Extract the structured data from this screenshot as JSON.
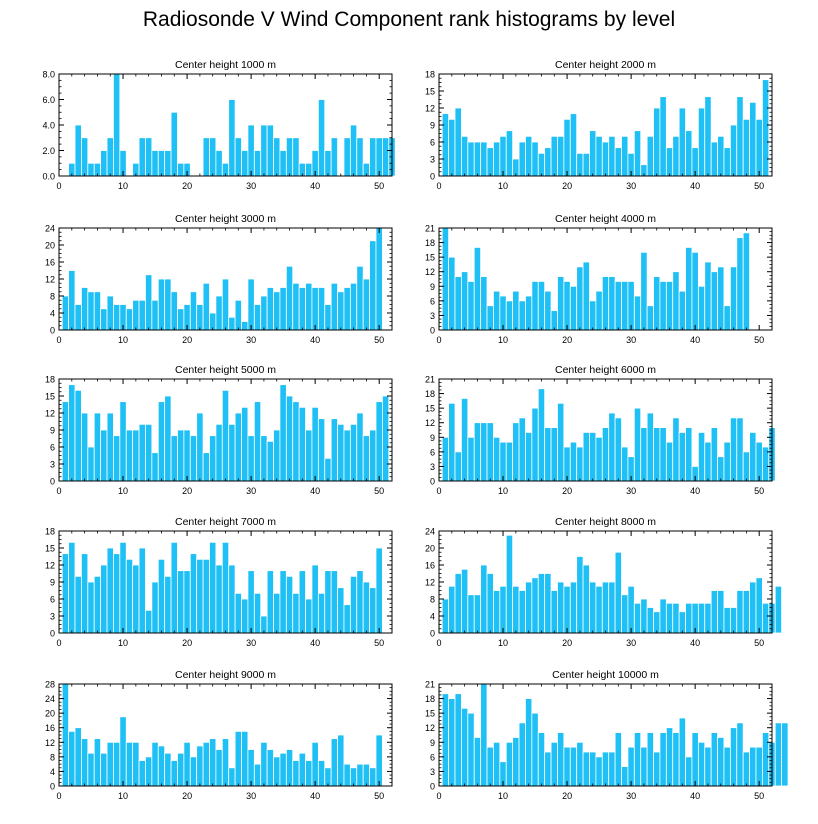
{
  "figure_title": "Radiosonde V Wind Component rank histograms by level",
  "colors": {
    "bar": "#1ec0f5",
    "bar_edge": "#ffffff",
    "axis": "#000000"
  },
  "chart_data": [
    {
      "type": "bar",
      "title": "Center height 1000 m",
      "xlabel": "",
      "ylabel": "",
      "xlim": [
        0,
        52
      ],
      "ylim": [
        0,
        8
      ],
      "yticks": [
        "0.0",
        "2.0",
        "4.0",
        "6.0",
        "8.0"
      ],
      "yticks_values": [
        0,
        2,
        4,
        6,
        8
      ],
      "xticks": [
        "0",
        "10",
        "20",
        "30",
        "40",
        "50"
      ],
      "values": [
        0,
        1,
        4,
        3,
        1,
        1,
        2,
        3,
        8,
        2,
        0,
        1,
        3,
        3,
        2,
        2,
        2,
        5,
        1,
        1,
        0,
        0,
        3,
        3,
        2,
        1,
        6,
        3,
        2,
        4,
        2,
        4,
        4,
        3,
        2,
        3,
        3,
        1,
        1,
        2,
        6,
        2,
        3,
        0,
        3,
        4,
        3,
        1,
        3,
        3,
        3,
        3
      ]
    },
    {
      "type": "bar",
      "title": "Center height 2000 m",
      "xlabel": "",
      "ylabel": "",
      "xlim": [
        0,
        52
      ],
      "ylim": [
        0,
        18
      ],
      "yticks": [
        "0",
        "3",
        "6",
        "9",
        "12",
        "15",
        "18"
      ],
      "yticks_values": [
        0,
        3,
        6,
        9,
        12,
        15,
        18
      ],
      "xticks": [
        "0",
        "10",
        "20",
        "30",
        "40",
        "50"
      ],
      "values": [
        11,
        10,
        12,
        7,
        6,
        6,
        6,
        5,
        6,
        7,
        8,
        3,
        6,
        7,
        6,
        4,
        5,
        7,
        7,
        10,
        11,
        4,
        4,
        8,
        7,
        6,
        7,
        5,
        7,
        4,
        8,
        2,
        7,
        12,
        14,
        5,
        7,
        12,
        8,
        5,
        12,
        14,
        6,
        7,
        5,
        9,
        14,
        10,
        13,
        10,
        17
      ]
    },
    {
      "type": "bar",
      "title": "Center height 3000 m",
      "xlabel": "",
      "ylabel": "",
      "xlim": [
        0,
        52
      ],
      "ylim": [
        0,
        24
      ],
      "yticks": [
        "0",
        "4",
        "8",
        "12",
        "16",
        "20",
        "24"
      ],
      "yticks_values": [
        0,
        4,
        8,
        12,
        16,
        20,
        24
      ],
      "xticks": [
        "0",
        "10",
        "20",
        "30",
        "40",
        "50"
      ],
      "values": [
        8,
        14,
        6,
        10,
        9,
        9,
        5,
        8,
        6,
        6,
        5,
        7,
        7,
        13,
        7,
        12,
        12,
        9,
        5,
        6,
        9,
        6,
        11,
        4,
        8,
        12,
        3,
        7,
        2,
        12,
        6,
        8,
        10,
        9,
        10,
        15,
        11,
        10,
        11,
        10,
        10,
        6,
        11,
        9,
        10,
        11,
        15,
        12,
        21,
        24
      ]
    },
    {
      "type": "bar",
      "title": "Center height 4000 m",
      "xlabel": "",
      "ylabel": "",
      "xlim": [
        0,
        52
      ],
      "ylim": [
        0,
        21
      ],
      "yticks": [
        "0",
        "3",
        "6",
        "9",
        "12",
        "15",
        "18",
        "21"
      ],
      "yticks_values": [
        0,
        3,
        6,
        9,
        12,
        15,
        18,
        21
      ],
      "xticks": [
        "0",
        "10",
        "20",
        "30",
        "40",
        "50"
      ],
      "values": [
        21,
        15,
        11,
        12,
        10,
        17,
        11,
        5,
        8,
        7,
        6,
        8,
        6,
        7,
        10,
        10,
        8,
        4,
        11,
        10,
        9,
        13,
        14,
        6,
        8,
        11,
        11,
        10,
        10,
        10,
        7,
        16,
        5,
        11,
        10,
        10,
        12,
        8,
        17,
        16,
        9,
        14,
        12,
        13,
        5,
        13,
        19,
        20
      ]
    },
    {
      "type": "bar",
      "title": "Center height 5000 m",
      "xlabel": "",
      "ylabel": "",
      "xlim": [
        0,
        52
      ],
      "ylim": [
        0,
        18
      ],
      "yticks": [
        "0",
        "3",
        "6",
        "9",
        "12",
        "15",
        "18"
      ],
      "yticks_values": [
        0,
        3,
        6,
        9,
        12,
        15,
        18
      ],
      "xticks": [
        "0",
        "10",
        "20",
        "30",
        "40",
        "50"
      ],
      "values": [
        14,
        17,
        16,
        12,
        6,
        12,
        9,
        12,
        8,
        14,
        9,
        9,
        10,
        10,
        5,
        14,
        15,
        8,
        9,
        9,
        8,
        12,
        5,
        8,
        10,
        16,
        10,
        12,
        13,
        8,
        14,
        8,
        7,
        9,
        17,
        15,
        14,
        13,
        9,
        13,
        11,
        4,
        11,
        10,
        9,
        10,
        12,
        8,
        9,
        14,
        15
      ]
    },
    {
      "type": "bar",
      "title": "Center height 6000 m",
      "xlabel": "",
      "ylabel": "",
      "xlim": [
        0,
        52
      ],
      "ylim": [
        0,
        21
      ],
      "yticks": [
        "0",
        "3",
        "6",
        "9",
        "12",
        "15",
        "18",
        "21"
      ],
      "yticks_values": [
        0,
        3,
        6,
        9,
        12,
        15,
        18,
        21
      ],
      "xticks": [
        "0",
        "10",
        "20",
        "30",
        "40",
        "50"
      ],
      "values": [
        9,
        16,
        6,
        17,
        9,
        12,
        12,
        12,
        9,
        8,
        8,
        12,
        13,
        10,
        15,
        19,
        11,
        11,
        16,
        7,
        8,
        7,
        10,
        10,
        9,
        11,
        14,
        13,
        7,
        5,
        15,
        11,
        14,
        11,
        11,
        8,
        13,
        10,
        11,
        3,
        10,
        8,
        11,
        5,
        8,
        13,
        13,
        6,
        10,
        8,
        7,
        11
      ]
    },
    {
      "type": "bar",
      "title": "Center height 7000 m",
      "xlabel": "",
      "ylabel": "",
      "xlim": [
        0,
        52
      ],
      "ylim": [
        0,
        18
      ],
      "yticks": [
        "0",
        "3",
        "6",
        "9",
        "12",
        "15",
        "18"
      ],
      "yticks_values": [
        0,
        3,
        6,
        9,
        12,
        15,
        18
      ],
      "xticks": [
        "0",
        "10",
        "20",
        "30",
        "40",
        "50"
      ],
      "values": [
        14,
        16,
        10,
        14,
        9,
        10,
        12,
        15,
        14,
        16,
        13,
        12,
        15,
        4,
        9,
        13,
        10,
        16,
        11,
        11,
        14,
        13,
        13,
        16,
        12,
        16,
        12,
        7,
        6,
        11,
        7,
        3,
        11,
        7,
        11,
        10,
        7,
        11,
        6,
        12,
        7,
        11,
        11,
        8,
        5,
        10,
        11,
        9,
        8,
        15
      ]
    },
    {
      "type": "bar",
      "title": "Center height 8000 m",
      "xlabel": "",
      "ylabel": "",
      "xlim": [
        0,
        52
      ],
      "ylim": [
        0,
        24
      ],
      "yticks": [
        "0",
        "4",
        "8",
        "12",
        "16",
        "20",
        "24"
      ],
      "yticks_values": [
        0,
        4,
        8,
        12,
        16,
        20,
        24
      ],
      "xticks": [
        "0",
        "10",
        "20",
        "30",
        "40",
        "50"
      ],
      "values": [
        8,
        11,
        14,
        15,
        9,
        9,
        16,
        14,
        10,
        11,
        23,
        11,
        10,
        12,
        13,
        14,
        14,
        10,
        12,
        11,
        12,
        18,
        16,
        12,
        11,
        12,
        12,
        19,
        9,
        11,
        7,
        8,
        6,
        5,
        8,
        7,
        7,
        5,
        7,
        7,
        7,
        7,
        10,
        10,
        6,
        6,
        10,
        10,
        12,
        13,
        7,
        7,
        11
      ]
    },
    {
      "type": "bar",
      "title": "Center height 9000 m",
      "xlabel": "",
      "ylabel": "",
      "xlim": [
        0,
        52
      ],
      "ylim": [
        0,
        28
      ],
      "yticks": [
        "0",
        "4",
        "8",
        "12",
        "16",
        "20",
        "24",
        "28"
      ],
      "yticks_values": [
        0,
        4,
        8,
        12,
        16,
        20,
        24,
        28
      ],
      "xticks": [
        "0",
        "10",
        "20",
        "30",
        "40",
        "50"
      ],
      "values": [
        28,
        15,
        16,
        13,
        9,
        13,
        9,
        12,
        12,
        19,
        12,
        12,
        7,
        8,
        12,
        11,
        9,
        7,
        9,
        12,
        8,
        11,
        12,
        13,
        10,
        13,
        5,
        15,
        15,
        10,
        6,
        12,
        10,
        8,
        9,
        10,
        7,
        9,
        7,
        12,
        7,
        5,
        13,
        14,
        6,
        5,
        6,
        6,
        5,
        14
      ]
    },
    {
      "type": "bar",
      "title": "Center height 10000 m",
      "xlabel": "",
      "ylabel": "",
      "xlim": [
        0,
        52
      ],
      "ylim": [
        0,
        21
      ],
      "yticks": [
        "0",
        "3",
        "6",
        "9",
        "12",
        "15",
        "18",
        "21"
      ],
      "yticks_values": [
        0,
        3,
        6,
        9,
        12,
        15,
        18,
        21
      ],
      "xticks": [
        "0",
        "10",
        "20",
        "30",
        "40",
        "50"
      ],
      "values": [
        19,
        18,
        19,
        16,
        15,
        10,
        21,
        8,
        9,
        5,
        9,
        10,
        13,
        18,
        15,
        11,
        7,
        9,
        11,
        8,
        8,
        9,
        7,
        7,
        6,
        7,
        7,
        11,
        4,
        8,
        11,
        8,
        11,
        7,
        11,
        12,
        11,
        14,
        6,
        11,
        9,
        8,
        11,
        10,
        8,
        12,
        13,
        7,
        8,
        8,
        11,
        9,
        13,
        13
      ]
    }
  ]
}
